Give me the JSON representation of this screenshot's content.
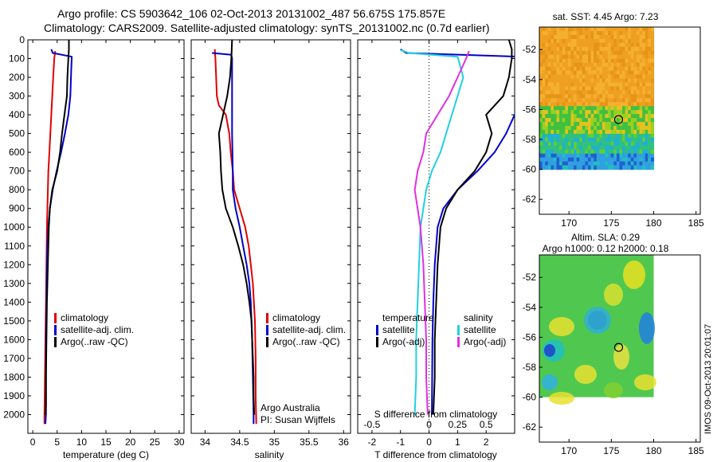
{
  "title_line1": "Argo profile: CS 5903642_106 02-Oct-2013 20131002_487 56.675S 175.857E",
  "title_line2": "Climatology: CARS2009. Satellite-adjusted climatology: synTS_20131002.nc (0.7d earlier)",
  "stamp": "IMOS 09-Oct-2013 20:01:07",
  "credit_line1": "Argo Australia",
  "credit_line2": "PI: Susan Wijffels",
  "colors": {
    "climatology": "#e00000",
    "satellite": "#0000cc",
    "argo": "#000000",
    "salinity_sat": "#22d0e0",
    "salinity_argo": "#e030e0"
  },
  "chart_data": [
    {
      "type": "line",
      "name": "temperature",
      "xlabel": "temperature (deg C)",
      "xlim": [
        -1,
        31
      ],
      "xticks": [
        0,
        5,
        10,
        15,
        20,
        25,
        30
      ],
      "ylim": [
        2100,
        0
      ],
      "yticks": [
        0,
        100,
        200,
        300,
        400,
        500,
        600,
        700,
        800,
        900,
        1000,
        1100,
        1200,
        1300,
        1400,
        1500,
        1600,
        1700,
        1800,
        1900,
        2000
      ],
      "legend": [
        "climatology",
        "satellite-adj. clim.",
        "Argo(..raw -QC)"
      ],
      "series": [
        {
          "key": "climatology",
          "points": [
            [
              4.6,
              60
            ],
            [
              4.4,
              100
            ],
            [
              4.2,
              200
            ],
            [
              4.0,
              300
            ],
            [
              3.8,
              400
            ],
            [
              3.6,
              500
            ],
            [
              3.4,
              600
            ],
            [
              3.2,
              700
            ],
            [
              3.1,
              800
            ],
            [
              3.0,
              900
            ],
            [
              2.9,
              1000
            ],
            [
              2.8,
              1200
            ],
            [
              2.7,
              1400
            ],
            [
              2.6,
              1600
            ],
            [
              2.5,
              1800
            ],
            [
              2.4,
              2000
            ],
            [
              2.4,
              2050
            ]
          ]
        },
        {
          "key": "satellite",
          "points": [
            [
              3.8,
              50
            ],
            [
              4.1,
              70
            ],
            [
              8.0,
              90
            ],
            [
              7.9,
              150
            ],
            [
              7.7,
              300
            ],
            [
              7.3,
              400
            ],
            [
              6.6,
              500
            ],
            [
              5.8,
              600
            ],
            [
              4.9,
              700
            ],
            [
              4.1,
              800
            ],
            [
              3.5,
              900
            ],
            [
              3.2,
              1000
            ],
            [
              3.0,
              1100
            ],
            [
              2.9,
              1200
            ],
            [
              2.8,
              1400
            ],
            [
              2.7,
              1600
            ],
            [
              2.7,
              1800
            ],
            [
              2.7,
              2000
            ],
            [
              2.6,
              2050
            ]
          ]
        },
        {
          "key": "argo",
          "points": [
            [
              7.4,
              0
            ],
            [
              7.4,
              50
            ],
            [
              7.3,
              100
            ],
            [
              7.1,
              200
            ],
            [
              7.0,
              300
            ],
            [
              6.5,
              400
            ],
            [
              6.0,
              500
            ],
            [
              5.6,
              600
            ],
            [
              5.0,
              700
            ],
            [
              4.0,
              800
            ],
            [
              3.5,
              900
            ],
            [
              3.3,
              1000
            ],
            [
              3.1,
              1200
            ],
            [
              2.9,
              1400
            ],
            [
              2.8,
              1600
            ],
            [
              2.7,
              1800
            ],
            [
              2.7,
              1950
            ],
            [
              2.6,
              2000
            ]
          ]
        }
      ]
    },
    {
      "type": "line",
      "name": "salinity",
      "xlabel": "salinity",
      "xlim": [
        33.8,
        36.1
      ],
      "xticks": [
        34,
        34.5,
        35,
        35.5,
        36
      ],
      "xtick_labels": [
        "34",
        "34.5",
        "35",
        "35.5",
        "36"
      ],
      "ylim": [
        2100,
        0
      ],
      "legend": [
        "climatology",
        "satellite-adj. clim.",
        "Argo(..raw -QC)"
      ],
      "series": [
        {
          "key": "climatology",
          "points": [
            [
              34.14,
              50
            ],
            [
              34.15,
              100
            ],
            [
              34.16,
              200
            ],
            [
              34.17,
              300
            ],
            [
              34.2,
              350
            ],
            [
              34.3,
              400
            ],
            [
              34.35,
              500
            ],
            [
              34.37,
              600
            ],
            [
              34.4,
              700
            ],
            [
              34.42,
              800
            ],
            [
              34.5,
              900
            ],
            [
              34.58,
              1000
            ],
            [
              34.63,
              1100
            ],
            [
              34.66,
              1200
            ],
            [
              34.69,
              1300
            ],
            [
              34.72,
              1500
            ],
            [
              34.73,
              1700
            ],
            [
              34.73,
              1900
            ],
            [
              34.74,
              2050
            ]
          ]
        },
        {
          "key": "satellite",
          "points": [
            [
              34.1,
              70
            ],
            [
              34.38,
              80
            ],
            [
              34.39,
              100
            ],
            [
              34.39,
              300
            ],
            [
              34.39,
              500
            ],
            [
              34.4,
              700
            ],
            [
              34.4,
              800
            ],
            [
              34.44,
              900
            ],
            [
              34.5,
              1000
            ],
            [
              34.55,
              1100
            ],
            [
              34.6,
              1200
            ],
            [
              34.64,
              1300
            ],
            [
              34.66,
              1400
            ],
            [
              34.68,
              1600
            ],
            [
              34.69,
              1800
            ],
            [
              34.7,
              2000
            ],
            [
              34.7,
              2050
            ]
          ]
        },
        {
          "key": "argo",
          "points": [
            [
              34.39,
              0
            ],
            [
              34.38,
              100
            ],
            [
              34.36,
              200
            ],
            [
              34.32,
              300
            ],
            [
              34.26,
              400
            ],
            [
              34.2,
              500
            ],
            [
              34.22,
              600
            ],
            [
              34.23,
              700
            ],
            [
              34.25,
              800
            ],
            [
              34.3,
              900
            ],
            [
              34.4,
              1000
            ],
            [
              34.48,
              1100
            ],
            [
              34.55,
              1200
            ],
            [
              34.6,
              1300
            ],
            [
              34.64,
              1400
            ],
            [
              34.67,
              1500
            ],
            [
              34.68,
              1600
            ],
            [
              34.69,
              1700
            ],
            [
              34.7,
              1800
            ],
            [
              34.7,
              1900
            ],
            [
              34.71,
              2000
            ]
          ]
        }
      ]
    },
    {
      "type": "line",
      "name": "difference",
      "xlabel": "T difference from climatology",
      "xlabel_top": "S difference from climatology",
      "xlim": [
        -2.5,
        3
      ],
      "xticks": [
        -2,
        -1,
        0,
        1,
        2
      ],
      "xticks_top": [
        -0.5,
        0,
        0.25,
        0.5
      ],
      "xtick_labels_top": [
        "-0.5",
        "0",
        "0.25",
        "0.5"
      ],
      "ylim": [
        2100,
        0
      ],
      "legend_headers": [
        "temperature",
        "salinity"
      ],
      "legend": [
        "satellite",
        "Argo(-adj)",
        "satellite",
        "Argo(-adj)"
      ],
      "series": [
        {
          "key": "satellite",
          "points": [
            [
              -1.0,
              50
            ],
            [
              -0.8,
              70
            ],
            [
              3.2,
              90
            ],
            [
              3.5,
              150
            ],
            [
              3.3,
              300
            ],
            [
              3.0,
              400
            ],
            [
              2.7,
              500
            ],
            [
              2.3,
              600
            ],
            [
              1.7,
              700
            ],
            [
              1.0,
              800
            ],
            [
              0.5,
              900
            ],
            [
              0.3,
              1000
            ],
            [
              0.2,
              1200
            ],
            [
              0.15,
              1400
            ],
            [
              0.12,
              1600
            ],
            [
              0.1,
              2000
            ]
          ]
        },
        {
          "key": "argo",
          "points": [
            [
              2.8,
              0
            ],
            [
              2.9,
              50
            ],
            [
              2.9,
              100
            ],
            [
              2.8,
              200
            ],
            [
              2.6,
              300
            ],
            [
              2.0,
              400
            ],
            [
              2.2,
              500
            ],
            [
              2.0,
              600
            ],
            [
              1.6,
              700
            ],
            [
              1.0,
              800
            ],
            [
              0.6,
              900
            ],
            [
              0.4,
              1000
            ],
            [
              0.3,
              1200
            ],
            [
              0.25,
              1400
            ],
            [
              0.2,
              1600
            ],
            [
              0.2,
              1800
            ],
            [
              0.15,
              2000
            ]
          ]
        },
        {
          "key": "salinity_sat",
          "points": [
            [
              -1.0,
              55
            ],
            [
              -0.7,
              70
            ],
            [
              1.0,
              90
            ],
            [
              1.2,
              200
            ],
            [
              1.0,
              300
            ],
            [
              0.8,
              400
            ],
            [
              0.6,
              500
            ],
            [
              0.4,
              600
            ],
            [
              0.1,
              700
            ],
            [
              -0.1,
              800
            ],
            [
              -0.2,
              900
            ],
            [
              -0.3,
              1000
            ],
            [
              -0.35,
              1200
            ],
            [
              -0.4,
              1400
            ],
            [
              -0.45,
              1600
            ],
            [
              -0.45,
              1800
            ],
            [
              -0.5,
              2000
            ]
          ]
        },
        {
          "key": "salinity_argo",
          "points": [
            [
              1.4,
              60
            ],
            [
              1.3,
              100
            ],
            [
              1.0,
              200
            ],
            [
              0.7,
              300
            ],
            [
              0.3,
              400
            ],
            [
              -0.1,
              500
            ],
            [
              -0.2,
              600
            ],
            [
              -0.4,
              700
            ],
            [
              -0.5,
              800
            ],
            [
              -0.4,
              900
            ],
            [
              -0.3,
              1000
            ],
            [
              -0.2,
              1200
            ],
            [
              -0.15,
              1400
            ],
            [
              -0.1,
              1600
            ],
            [
              -0.1,
              1800
            ],
            [
              -0.05,
              2000
            ]
          ]
        }
      ]
    },
    {
      "type": "heatmap",
      "name": "sst_map",
      "title": "sat. SST: 4.45 Argo: 7.23",
      "xlim": [
        166.5,
        185.5
      ],
      "ylim": [
        -63,
        -50.5
      ],
      "xticks": [
        170,
        175,
        180,
        185
      ],
      "yticks": [
        -52,
        -54,
        -56,
        -58,
        -60,
        -62
      ],
      "marker": [
        175.857,
        -56.675
      ]
    },
    {
      "type": "heatmap",
      "name": "sla_map",
      "title_line1": "Altim. SLA: 0.29",
      "title_line2": "Argo h1000: 0.12 h2000: 0.18",
      "xlim": [
        166.5,
        185.5
      ],
      "ylim": [
        -63,
        -50.5
      ],
      "xticks": [
        170,
        175,
        180,
        185
      ],
      "yticks": [
        -52,
        -54,
        -56,
        -58,
        -60,
        -62
      ],
      "marker": [
        175.857,
        -56.675
      ]
    }
  ]
}
